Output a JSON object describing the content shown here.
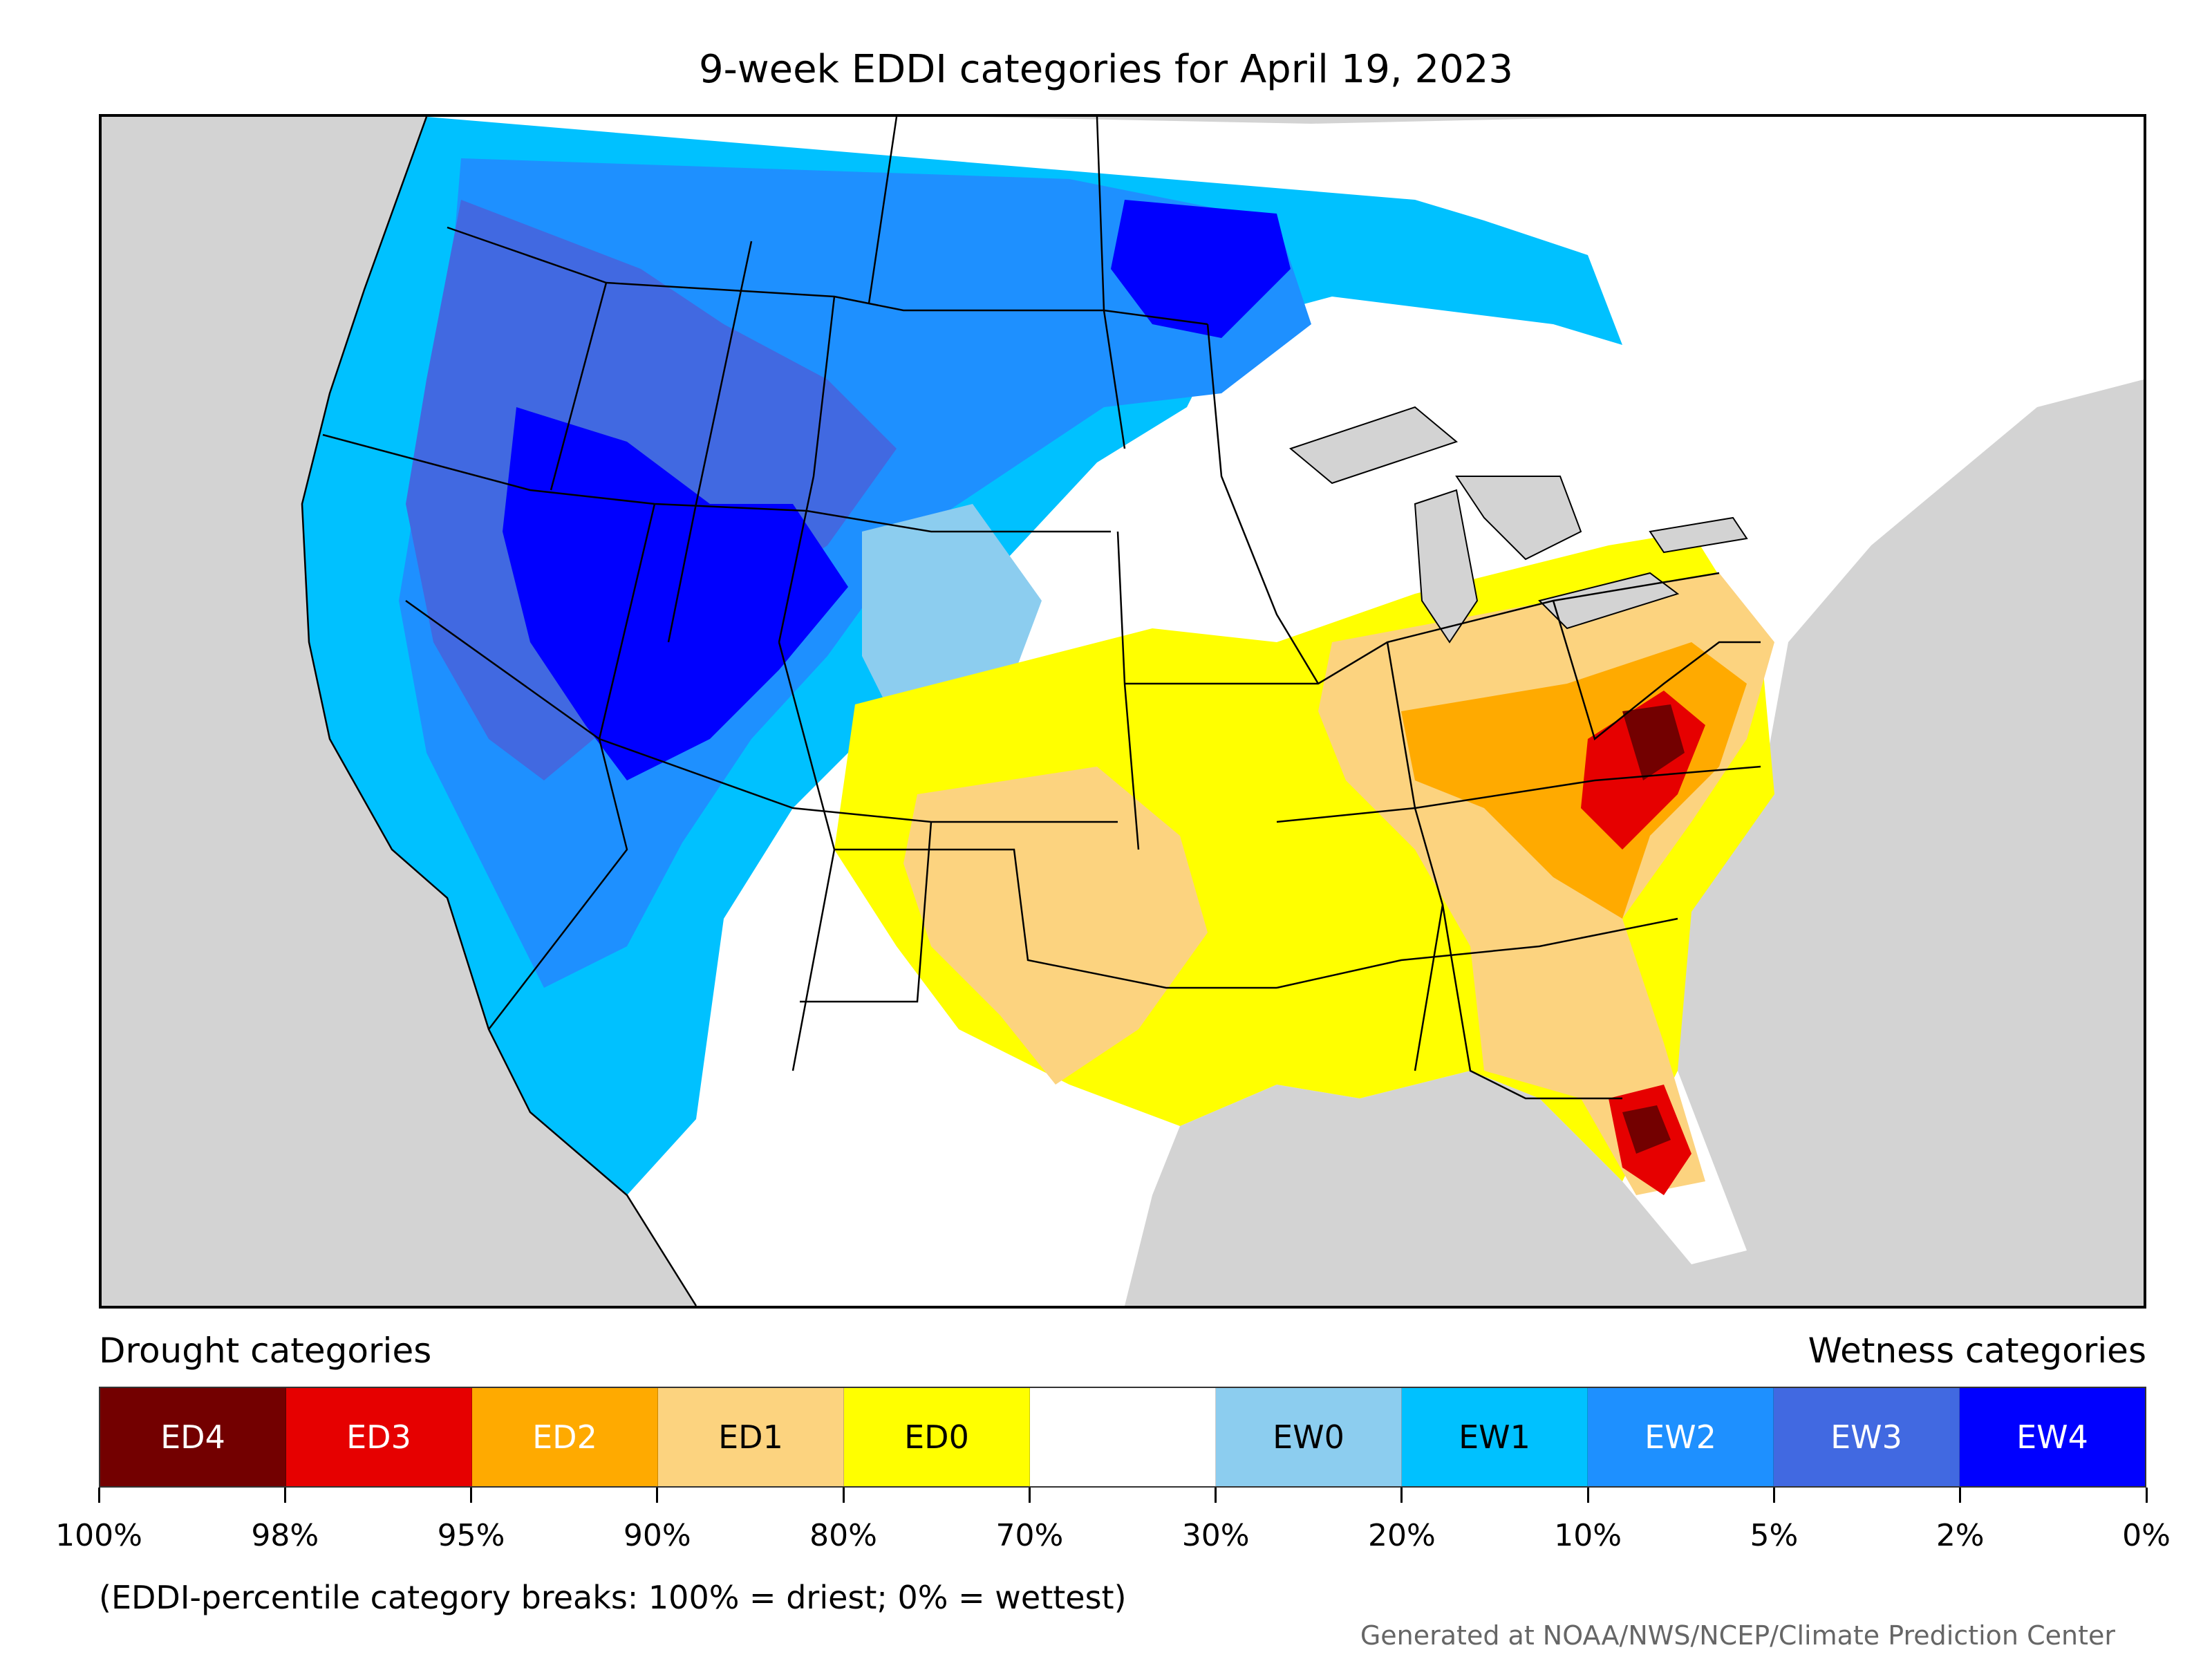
{
  "title": "9-week EDDI categories for April 19, 2023",
  "legend": {
    "drought_heading": "Drought categories",
    "wetness_heading": "Wetness categories",
    "categories": [
      {
        "label": "ED4",
        "color": "#730000",
        "text_color": "#ffffff"
      },
      {
        "label": "ED3",
        "color": "#e60000",
        "text_color": "#ffffff"
      },
      {
        "label": "ED2",
        "color": "#ffaa00",
        "text_color": "#ffffff"
      },
      {
        "label": "ED1",
        "color": "#fcd37f",
        "text_color": "#000000"
      },
      {
        "label": "ED0",
        "color": "#ffff00",
        "text_color": "#000000"
      },
      {
        "label": "",
        "color": "#ffffff",
        "text_color": "#000000"
      },
      {
        "label": "EW0",
        "color": "#8ccdef",
        "text_color": "#000000"
      },
      {
        "label": "EW1",
        "color": "#00c1ff",
        "text_color": "#000000"
      },
      {
        "label": "EW2",
        "color": "#1e90ff",
        "text_color": "#ffffff"
      },
      {
        "label": "EW3",
        "color": "#4169e1",
        "text_color": "#ffffff"
      },
      {
        "label": "EW4",
        "color": "#0000ff",
        "text_color": "#ffffff"
      }
    ],
    "tick_labels": [
      "100%",
      "98%",
      "95%",
      "90%",
      "80%",
      "70%",
      "30%",
      "20%",
      "10%",
      "5%",
      "2%",
      "0%"
    ]
  },
  "footnote": "(EDDI-percentile category breaks: 100% = driest; 0% = wettest)",
  "credit": "Generated at NOAA/NWS/NCEP/Climate Prediction Center",
  "colors": {
    "land_outside": "#d3d3d3",
    "neutral": "#ffffff",
    "borders": "#000000"
  }
}
